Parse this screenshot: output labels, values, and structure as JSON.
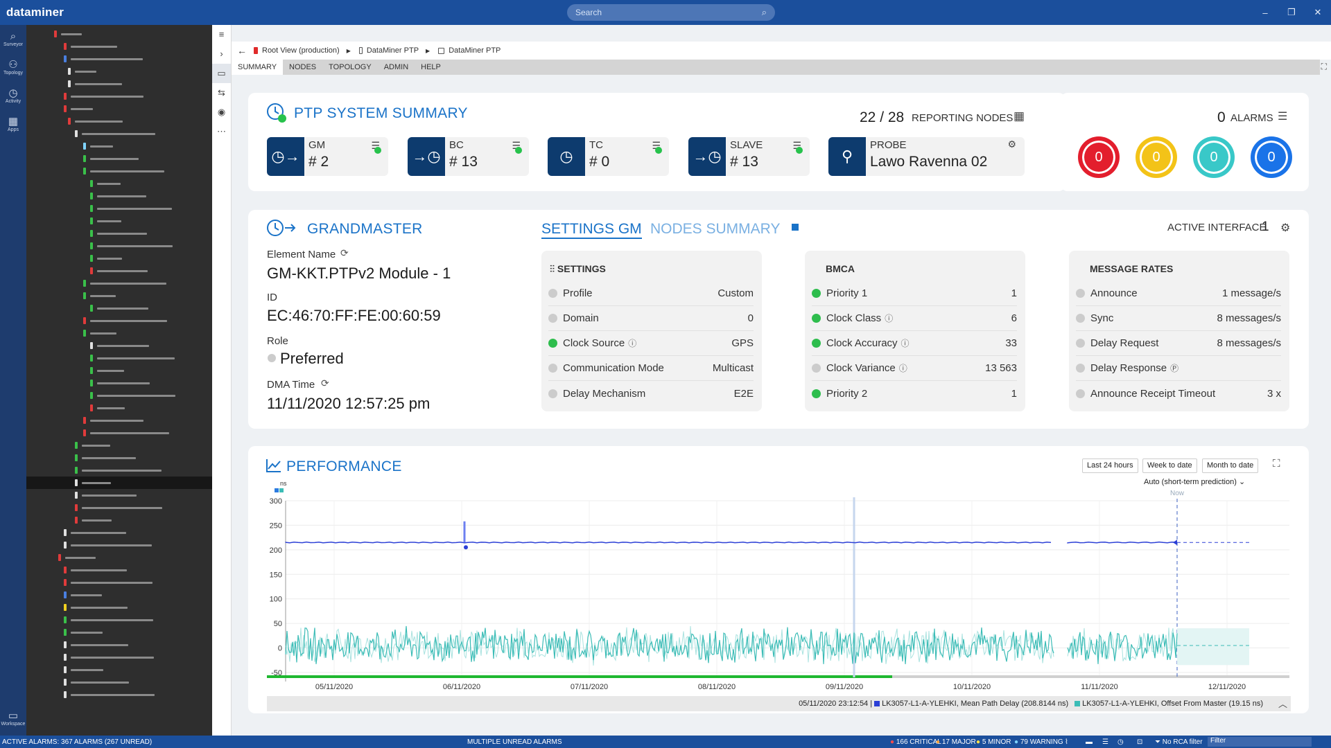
{
  "app": {
    "logo": "dataminer",
    "search_placeholder": "Search",
    "win_min": "–",
    "win_max": "❐",
    "win_close": "✕"
  },
  "rail": [
    {
      "label": "Surveyor",
      "icon": "surveyor-icon",
      "glyph": "⌕"
    },
    {
      "label": "Topology",
      "icon": "topology-icon",
      "glyph": "⚇"
    },
    {
      "label": "Activity",
      "icon": "activity-icon",
      "glyph": "◷"
    },
    {
      "label": "Apps",
      "icon": "apps-icon",
      "glyph": "▦"
    }
  ],
  "workspace": {
    "label": "Workspace",
    "glyph": "▭"
  },
  "breadcrumb": {
    "root": "Root View (production)",
    "level1": "DataMiner PTP",
    "level2": "DataMiner PTP"
  },
  "tabs": [
    "SUMMARY",
    "NODES",
    "TOPOLOGY",
    "ADMIN",
    "HELP"
  ],
  "summary": {
    "title": "PTP SYSTEM SUMMARY",
    "reporting_count": "22 / 28",
    "reporting_label": "REPORTING NODES",
    "boxes": [
      {
        "label": "GM",
        "value": "# 2",
        "glyph": "◷→"
      },
      {
        "label": "BC",
        "value": "# 13",
        "glyph": "→◷"
      },
      {
        "label": "TC",
        "value": "# 0",
        "glyph": "◷"
      },
      {
        "label": "SLAVE",
        "value": "# 13",
        "glyph": "→◷"
      }
    ],
    "probe": {
      "label": "PROBE",
      "value": "Lawo Ravenna 02",
      "glyph": "⚲"
    }
  },
  "alarms": {
    "count": "0",
    "label": "ALARMS",
    "circles": [
      {
        "value": "0",
        "color": "#e31e2d"
      },
      {
        "value": "0",
        "color": "#f3c318"
      },
      {
        "value": "0",
        "color": "#39c8c8"
      },
      {
        "value": "0",
        "color": "#1a73e8"
      }
    ]
  },
  "grandmaster": {
    "title": "GRANDMASTER",
    "tab_settings": "SETTINGS GM",
    "tab_nodes": "NODES SUMMARY",
    "active_interface_label": "ACTIVE INTERFACE",
    "active_interface_value": "1",
    "element_name_label": "Element Name",
    "element_name": "GM-KKT.PTPv2 Module - 1",
    "id_label": "ID",
    "id": "EC:46:70:FF:FE:00:60:59",
    "role_label": "Role",
    "role": "Preferred",
    "dma_time_label": "DMA Time",
    "dma_time": "11/11/2020 12:57:25 pm"
  },
  "settings_panel": {
    "title": "SETTINGS",
    "rows": [
      {
        "label": "Profile",
        "value": "Custom",
        "status": "grey",
        "info": ""
      },
      {
        "label": "Domain",
        "value": "0",
        "status": "grey",
        "info": ""
      },
      {
        "label": "Clock Source",
        "value": "GPS",
        "status": "green",
        "info": "ⓘ"
      },
      {
        "label": "Communication Mode",
        "value": "Multicast",
        "status": "grey",
        "info": ""
      },
      {
        "label": "Delay Mechanism",
        "value": "E2E",
        "status": "grey",
        "info": ""
      }
    ]
  },
  "bmca_panel": {
    "title": "BMCA",
    "rows": [
      {
        "label": "Priority 1",
        "value": "1",
        "status": "green",
        "info": ""
      },
      {
        "label": "Clock Class",
        "value": "6",
        "status": "green",
        "info": "ⓘ"
      },
      {
        "label": "Clock Accuracy",
        "value": "33",
        "status": "green",
        "info": "ⓘ"
      },
      {
        "label": "Clock Variance",
        "value": "13 563",
        "status": "grey",
        "info": "ⓘ"
      },
      {
        "label": "Priority 2",
        "value": "1",
        "status": "green",
        "info": ""
      }
    ]
  },
  "rates_panel": {
    "title": "MESSAGE RATES",
    "rows": [
      {
        "label": "Announce",
        "value": "1 message/s",
        "status": "grey",
        "info": ""
      },
      {
        "label": "Sync",
        "value": "8 messages/s",
        "status": "grey",
        "info": ""
      },
      {
        "label": "Delay Request",
        "value": "8 messages/s",
        "status": "grey",
        "info": ""
      },
      {
        "label": "Delay Response",
        "value": "",
        "status": "grey",
        "info": "Ⓟ"
      },
      {
        "label": "Announce Receipt Timeout",
        "value": "3 x",
        "status": "grey",
        "info": ""
      }
    ]
  },
  "performance": {
    "title": "PERFORMANCE",
    "btn_24h": "Last 24 hours",
    "btn_week": "Week to date",
    "btn_month": "Month to date",
    "prediction": "Auto (short-term prediction)",
    "now_label": "Now",
    "legend_time": "05/11/2020 23:12:54 |",
    "legend_s1": "LK3057-L1-A-YLEHKI, Mean Path Delay (208.8144 ns)",
    "legend_s2": "LK3057-L1-A-YLEHKI, Offset From Master (19.15 ns)"
  },
  "chart_data": {
    "type": "line",
    "ylabel": "ns",
    "ylim": [
      -60,
      300
    ],
    "yticks": [
      300,
      250,
      200,
      150,
      100,
      50,
      0,
      -50
    ],
    "xticks": [
      "05/11/2020",
      "06/11/2020",
      "07/11/2020",
      "08/11/2020",
      "09/11/2020",
      "10/11/2020",
      "11/11/2020",
      "12/11/2020"
    ],
    "series": [
      {
        "name": "LK3057-L1-A-YLEHKI, Mean Path Delay",
        "color": "#2b3fd6",
        "baseline": 215,
        "spike": 258
      },
      {
        "name": "LK3057-L1-A-YLEHKI, Offset From Master",
        "color": "#3bbcb6",
        "baseline": 5,
        "range": [
          -50,
          55
        ]
      }
    ]
  },
  "statusbar": {
    "active": "ACTIVE ALARMS: 367 ALARMS (267 UNREAD)",
    "multiple": "MULTIPLE UNREAD ALARMS",
    "critical": "166 CRITICAL",
    "major": "17 MAJOR",
    "minor": "5 MINOR",
    "warning": "79 WARNING",
    "rca": "No RCA filter",
    "filter": "Filter"
  }
}
